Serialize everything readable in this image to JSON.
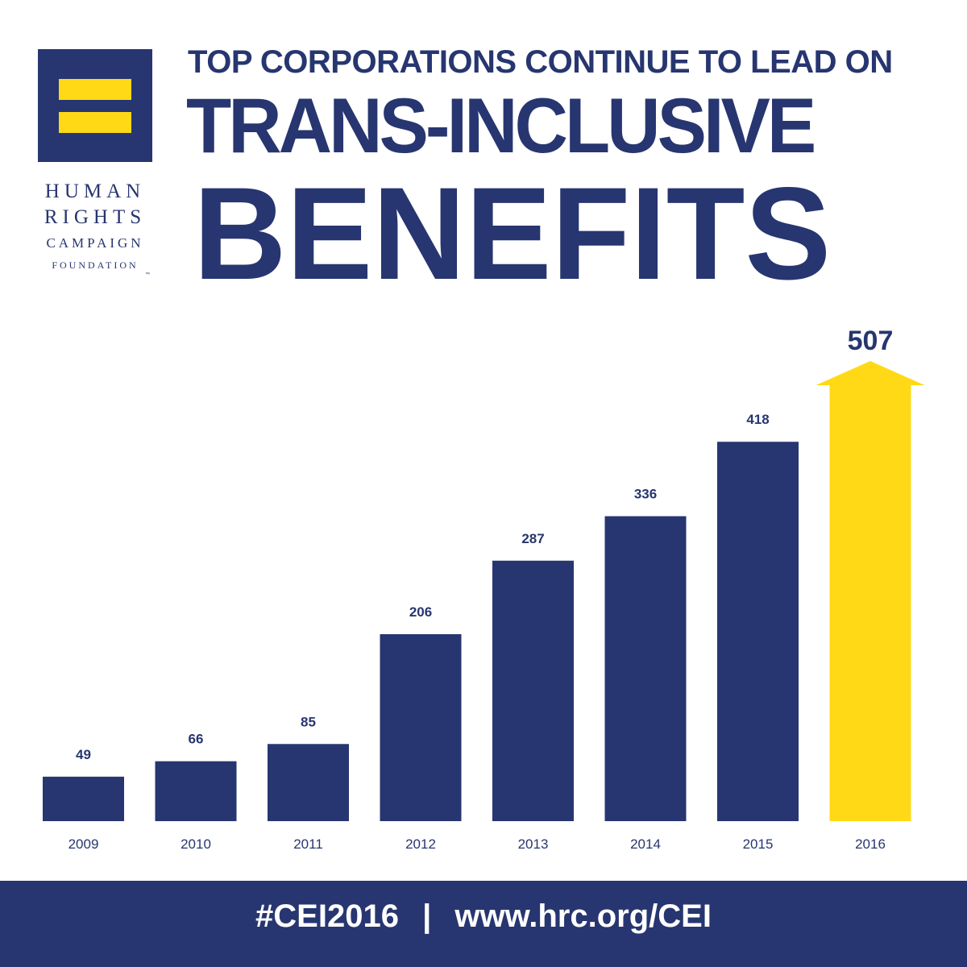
{
  "logo": {
    "org_line_1": "HUMAN",
    "org_line_2": "RIGHTS",
    "org_line_3": "CAMPAIGN",
    "org_line_4": "FOUNDATION",
    "trademark": "™"
  },
  "header": {
    "line_1": "TOP CORPORATIONS CONTINUE TO LEAD ON",
    "line_2": "TRANS-INCLUSIVE",
    "line_3": "BENEFITS"
  },
  "colors": {
    "navy": "#273670",
    "yellow": "#ffd915"
  },
  "chart_data": {
    "type": "bar",
    "title": "TOP CORPORATIONS CONTINUE TO LEAD ON TRANS-INCLUSIVE BENEFITS",
    "xlabel": "",
    "ylabel": "",
    "categories": [
      "2009",
      "2010",
      "2011",
      "2012",
      "2013",
      "2014",
      "2015",
      "2016"
    ],
    "values": [
      49,
      66,
      85,
      206,
      287,
      336,
      418,
      507
    ],
    "highlight_index": 7,
    "highlight_shape": "arrow",
    "ylim": [
      0,
      507
    ],
    "grid": false,
    "legend": "none"
  },
  "footer": {
    "hashtag": "#CEI2016",
    "separator": "|",
    "url": "www.hrc.org/CEI"
  }
}
